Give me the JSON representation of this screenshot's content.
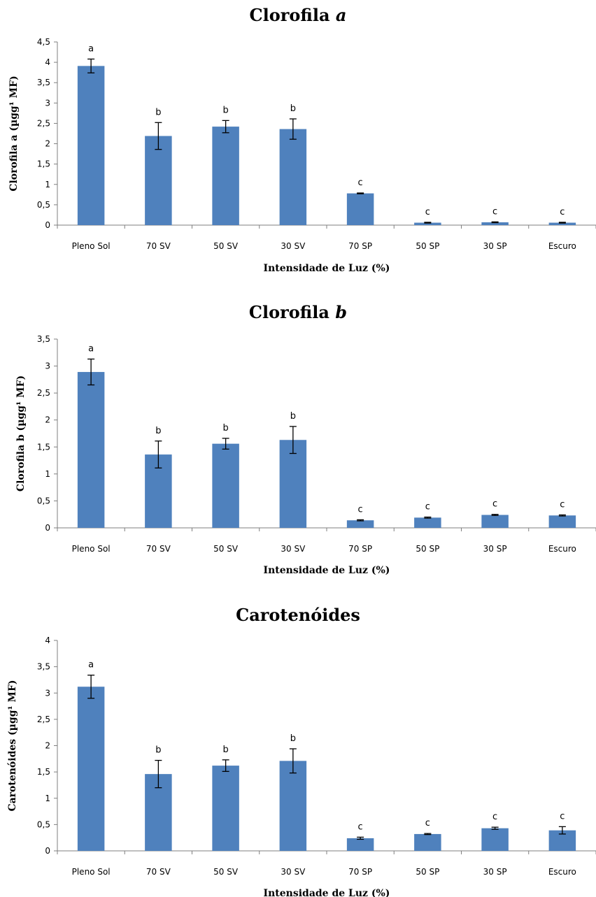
{
  "chart_data": [
    {
      "type": "bar",
      "title": "Clorofila a",
      "title_main": "Clorofila ",
      "title_italic": "a",
      "ylabel": "Clorofila a (µgg¹ MF)",
      "xlabel": "Intensidade de Luz (%)",
      "categories": [
        "Pleno Sol",
        "70 SV",
        "50 SV",
        "30 SV",
        "70 SP",
        "50 SP",
        "30 SP",
        "Escuro"
      ],
      "values": [
        3.91,
        2.19,
        2.42,
        2.36,
        0.78,
        0.06,
        0.07,
        0.06
      ],
      "errors": [
        0.17,
        0.33,
        0.15,
        0.25,
        0.01,
        0.01,
        0.01,
        0.01
      ],
      "letters": [
        "a",
        "b",
        "b",
        "b",
        "c",
        "c",
        "c",
        "c"
      ],
      "ylim": [
        0,
        4.5
      ],
      "yticks": [
        "0",
        "0,5",
        "1",
        "1,5",
        "2",
        "2,5",
        "3",
        "3,5",
        "4",
        "4,5"
      ],
      "grid": false,
      "bar_color": "#4f81bd"
    },
    {
      "type": "bar",
      "title": "Clorofila b",
      "title_main": "Clorofila ",
      "title_italic": "b",
      "ylabel": "Clorofila b (µgg¹ MF)",
      "xlabel": "Intensidade de Luz (%)",
      "categories": [
        "Pleno Sol",
        "70 SV",
        "50 SV",
        "30 SV",
        "70 SP",
        "50 SP",
        "30 SP",
        "Escuro"
      ],
      "values": [
        2.89,
        1.36,
        1.56,
        1.63,
        0.14,
        0.19,
        0.24,
        0.23
      ],
      "errors": [
        0.24,
        0.25,
        0.1,
        0.25,
        0.01,
        0.01,
        0.01,
        0.01
      ],
      "letters": [
        "a",
        "b",
        "b",
        "b",
        "c",
        "c",
        "c",
        "c"
      ],
      "ylim": [
        0,
        3.5
      ],
      "yticks": [
        "0",
        "0,5",
        "1",
        "1,5",
        "2",
        "2,5",
        "3",
        "3,5"
      ],
      "grid": false,
      "bar_color": "#4f81bd"
    },
    {
      "type": "bar",
      "title": "Carotenóides",
      "title_main": "Carotenóides",
      "title_italic": "",
      "ylabel": "Carotenóides (µgg¹ MF)",
      "xlabel": "Intensidade de Luz (%)",
      "categories": [
        "Pleno Sol",
        "70 SV",
        "50 SV",
        "30 SV",
        "70 SP",
        "50 SP",
        "30 SP",
        "Escuro"
      ],
      "values": [
        3.12,
        1.46,
        1.62,
        1.71,
        0.24,
        0.32,
        0.43,
        0.39
      ],
      "errors": [
        0.22,
        0.26,
        0.11,
        0.23,
        0.02,
        0.01,
        0.02,
        0.07
      ],
      "letters": [
        "a",
        "b",
        "b",
        "b",
        "c",
        "c",
        "c",
        "c"
      ],
      "ylim": [
        0,
        4
      ],
      "yticks": [
        "0",
        "0,5",
        "1",
        "1,5",
        "2",
        "2,5",
        "3",
        "3,5",
        "4"
      ],
      "grid": false,
      "bar_color": "#4f81bd"
    }
  ]
}
